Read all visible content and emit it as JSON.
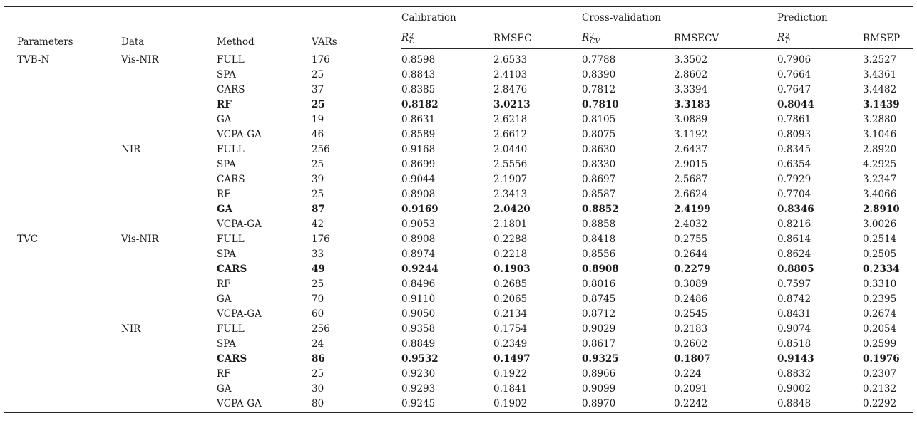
{
  "colors": {
    "text": "#1a1a1a",
    "rule": "#242424",
    "background": "#ffffff"
  },
  "table": {
    "simple_headers": [
      "Parameters",
      "Data",
      "Method",
      "VARs"
    ],
    "groups": [
      {
        "label": "Calibration",
        "subheaders": [
          {
            "kind": "rsq",
            "base": "R",
            "sup": "2",
            "sub": "C"
          },
          {
            "kind": "text",
            "label": "RMSEC"
          }
        ]
      },
      {
        "label": "Cross-validation",
        "subheaders": [
          {
            "kind": "rsq",
            "base": "R",
            "sup": "2",
            "sub": "CV"
          },
          {
            "kind": "text",
            "label": "RMSECV"
          }
        ]
      },
      {
        "label": "Prediction",
        "subheaders": [
          {
            "kind": "rsq",
            "base": "R",
            "sup": "2",
            "sub": "P"
          },
          {
            "kind": "text",
            "label": "RMSEP"
          }
        ]
      }
    ],
    "rows": [
      {
        "parameter": "TVB-N",
        "data": "Vis-NIR",
        "method": "FULL",
        "vars": "176",
        "values": [
          "0.8598",
          "2.6533",
          "0.7788",
          "3.3502",
          "0.7906",
          "3.2527"
        ],
        "bold": false
      },
      {
        "parameter": "",
        "data": "",
        "method": "SPA",
        "vars": "25",
        "values": [
          "0.8843",
          "2.4103",
          "0.8390",
          "2.8602",
          "0.7664",
          "3.4361"
        ],
        "bold": false
      },
      {
        "parameter": "",
        "data": "",
        "method": "CARS",
        "vars": "37",
        "values": [
          "0.8385",
          "2.8476",
          "0.7812",
          "3.3394",
          "0.7647",
          "3.4482"
        ],
        "bold": false
      },
      {
        "parameter": "",
        "data": "",
        "method": "RF",
        "vars": "25",
        "values": [
          "0.8182",
          "3.0213",
          "0.7810",
          "3.3183",
          "0.8044",
          "3.1439"
        ],
        "bold": true
      },
      {
        "parameter": "",
        "data": "",
        "method": "GA",
        "vars": "19",
        "values": [
          "0.8631",
          "2.6218",
          "0.8105",
          "3.0889",
          "0.7861",
          "3.2880"
        ],
        "bold": false
      },
      {
        "parameter": "",
        "data": "",
        "method": "VCPA-GA",
        "vars": "46",
        "values": [
          "0.8589",
          "2.6612",
          "0.8075",
          "3.1192",
          "0.8093",
          "3.1046"
        ],
        "bold": false
      },
      {
        "parameter": "",
        "data": "NIR",
        "method": "FULL",
        "vars": "256",
        "values": [
          "0.9168",
          "2.0440",
          "0.8630",
          "2.6437",
          "0.8345",
          "2.8920"
        ],
        "bold": false
      },
      {
        "parameter": "",
        "data": "",
        "method": "SPA",
        "vars": "25",
        "values": [
          "0.8699",
          "2.5556",
          "0.8330",
          "2.9015",
          "0.6354",
          "4.2925"
        ],
        "bold": false
      },
      {
        "parameter": "",
        "data": "",
        "method": "CARS",
        "vars": "39",
        "values": [
          "0.9044",
          "2.1907",
          "0.8697",
          "2.5687",
          "0.7929",
          "3.2347"
        ],
        "bold": false
      },
      {
        "parameter": "",
        "data": "",
        "method": "RF",
        "vars": "25",
        "values": [
          "0.8908",
          "2.3413",
          "0.8587",
          "2.6624",
          "0.7704",
          "3.4066"
        ],
        "bold": false
      },
      {
        "parameter": "",
        "data": "",
        "method": "GA",
        "vars": "87",
        "values": [
          "0.9169",
          "2.0420",
          "0.8852",
          "2.4199",
          "0.8346",
          "2.8910"
        ],
        "bold": true
      },
      {
        "parameter": "",
        "data": "",
        "method": "VCPA-GA",
        "vars": "42",
        "values": [
          "0.9053",
          "2.1801",
          "0.8858",
          "2.4032",
          "0.8216",
          "3.0026"
        ],
        "bold": false
      },
      {
        "parameter": "TVC",
        "data": "Vis-NIR",
        "method": "FULL",
        "vars": "176",
        "values": [
          "0.8908",
          "0.2288",
          "0.8418",
          "0.2755",
          "0.8614",
          "0.2514"
        ],
        "bold": false
      },
      {
        "parameter": "",
        "data": "",
        "method": "SPA",
        "vars": "33",
        "values": [
          "0.8974",
          "0.2218",
          "0.8556",
          "0.2644",
          "0.8624",
          "0.2505"
        ],
        "bold": false
      },
      {
        "parameter": "",
        "data": "",
        "method": "CARS",
        "vars": "49",
        "values": [
          "0.9244",
          "0.1903",
          "0.8908",
          "0.2279",
          "0.8805",
          "0.2334"
        ],
        "bold": true
      },
      {
        "parameter": "",
        "data": "",
        "method": "RF",
        "vars": "25",
        "values": [
          "0.8496",
          "0.2685",
          "0.8016",
          "0.3089",
          "0.7597",
          "0.3310"
        ],
        "bold": false
      },
      {
        "parameter": "",
        "data": "",
        "method": "GA",
        "vars": "70",
        "values": [
          "0.9110",
          "0.2065",
          "0.8745",
          "0.2486",
          "0.8742",
          "0.2395"
        ],
        "bold": false
      },
      {
        "parameter": "",
        "data": "",
        "method": "VCPA-GA",
        "vars": "60",
        "values": [
          "0.9050",
          "0.2134",
          "0.8712",
          "0.2545",
          "0.8431",
          "0.2674"
        ],
        "bold": false
      },
      {
        "parameter": "",
        "data": "NIR",
        "method": "FULL",
        "vars": "256",
        "values": [
          "0.9358",
          "0.1754",
          "0.9029",
          "0.2183",
          "0.9074",
          "0.2054"
        ],
        "bold": false
      },
      {
        "parameter": "",
        "data": "",
        "method": "SPA",
        "vars": "24",
        "values": [
          "0.8849",
          "0.2349",
          "0.8617",
          "0.2602",
          "0.8518",
          "0.2599"
        ],
        "bold": false
      },
      {
        "parameter": "",
        "data": "",
        "method": "CARS",
        "vars": "86",
        "values": [
          "0.9532",
          "0.1497",
          "0.9325",
          "0.1807",
          "0.9143",
          "0.1976"
        ],
        "bold": true
      },
      {
        "parameter": "",
        "data": "",
        "method": "RF",
        "vars": "25",
        "values": [
          "0.9230",
          "0.1922",
          "0.8966",
          "0.224",
          "0.8832",
          "0.2307"
        ],
        "bold": false
      },
      {
        "parameter": "",
        "data": "",
        "method": "GA",
        "vars": "30",
        "values": [
          "0.9293",
          "0.1841",
          "0.9099",
          "0.2091",
          "0.9002",
          "0.2132"
        ],
        "bold": false
      },
      {
        "parameter": "",
        "data": "",
        "method": "VCPA-GA",
        "vars": "80",
        "values": [
          "0.9245",
          "0.1902",
          "0.8970",
          "0.2242",
          "0.8848",
          "0.2292"
        ],
        "bold": false
      }
    ]
  }
}
